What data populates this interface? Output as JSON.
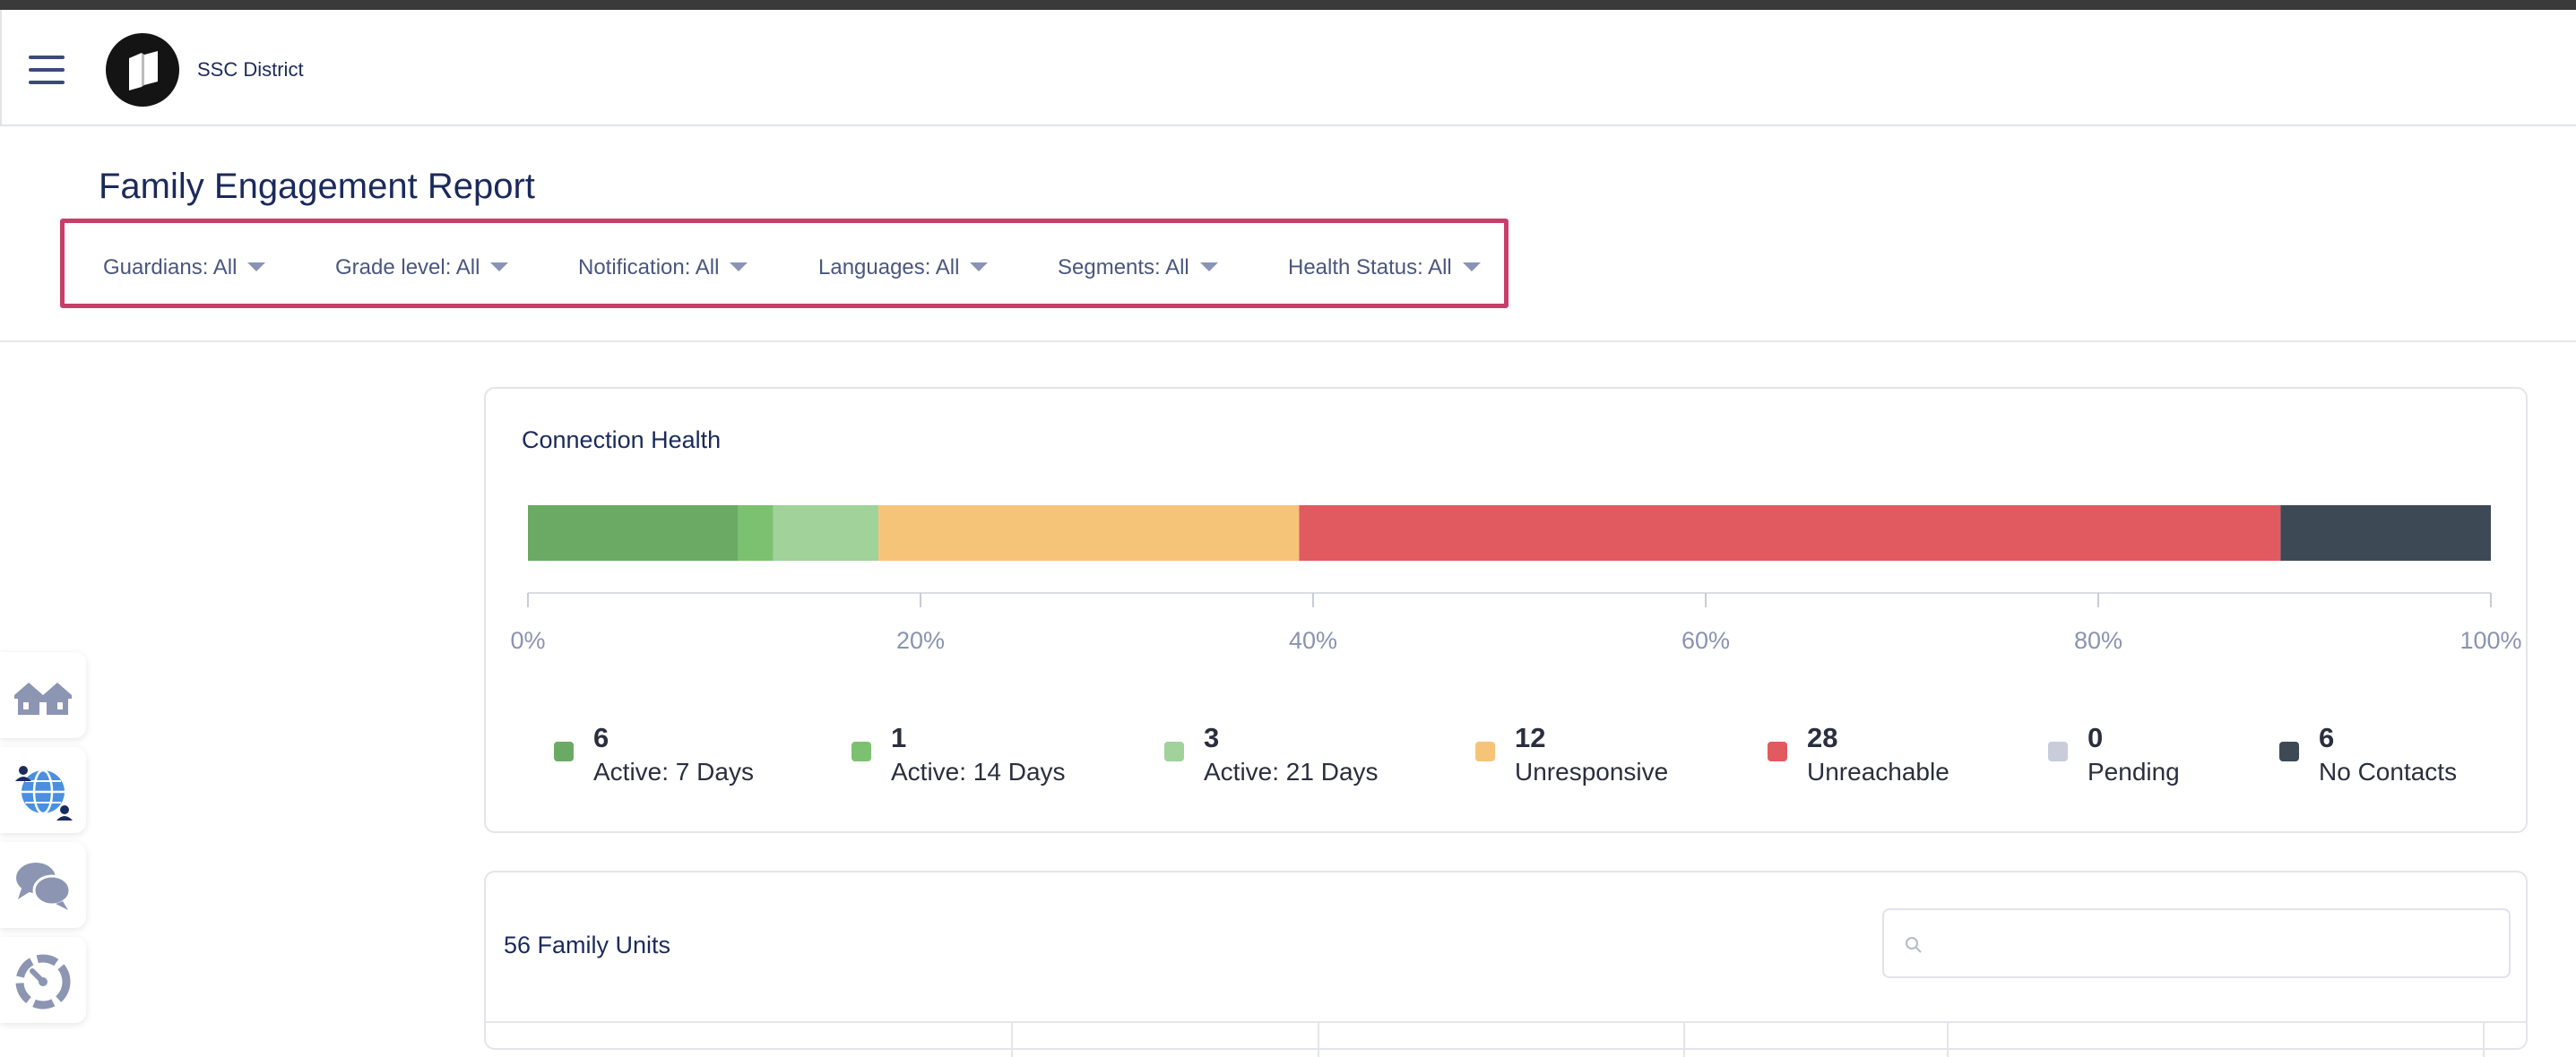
{
  "header": {
    "menu_icon": "hamburger-icon",
    "logo_icon": "book-logo-icon",
    "district_name": "SSC District"
  },
  "page": {
    "title": "Family Engagement Report"
  },
  "filters": [
    {
      "label": "Guardians: All"
    },
    {
      "label": "Grade level: All"
    },
    {
      "label": "Notification: All"
    },
    {
      "label": "Languages: All"
    },
    {
      "label": "Segments: All"
    },
    {
      "label": "Health Status: All"
    }
  ],
  "connection_health": {
    "title": "Connection Health"
  },
  "chart_data": {
    "type": "bar",
    "orientation": "horizontal-stacked-100",
    "title": "",
    "categories": [
      "Active: 7 Days",
      "Active: 14 Days",
      "Active: 21 Days",
      "Unresponsive",
      "Unreachable",
      "Pending",
      "No Contacts"
    ],
    "values": [
      6,
      1,
      3,
      12,
      28,
      0,
      6
    ],
    "colors": [
      "#6aaa64",
      "#7cc16f",
      "#a0d29a",
      "#f6c479",
      "#e15a60",
      "#c8ccdb",
      "#3d4a55"
    ],
    "x_ticks": [
      "0%",
      "20%",
      "40%",
      "60%",
      "80%",
      "100%"
    ],
    "xlim": [
      0,
      100
    ],
    "grid": false,
    "legend_position": "bottom"
  },
  "legend": [
    {
      "count": "6",
      "label": "Active: 7 Days",
      "color": "#6aaa64"
    },
    {
      "count": "1",
      "label": "Active: 14 Days",
      "color": "#7cc16f"
    },
    {
      "count": "3",
      "label": "Active: 21 Days",
      "color": "#a0d29a"
    },
    {
      "count": "12",
      "label": "Unresponsive",
      "color": "#f6c479"
    },
    {
      "count": "28",
      "label": "Unreachable",
      "color": "#e15a60"
    },
    {
      "count": "0",
      "label": "Pending",
      "color": "#c8ccdb"
    },
    {
      "count": "6",
      "label": "No Contacts",
      "color": "#3d4a55"
    }
  ],
  "family_units": {
    "title": "56 Family Units",
    "search_placeholder": "",
    "search_icon": "search-icon"
  },
  "side_nav": [
    {
      "icon": "houses-icon"
    },
    {
      "icon": "globe-people-icon"
    },
    {
      "icon": "chat-bubbles-icon"
    },
    {
      "icon": "gauge-icon"
    }
  ]
}
